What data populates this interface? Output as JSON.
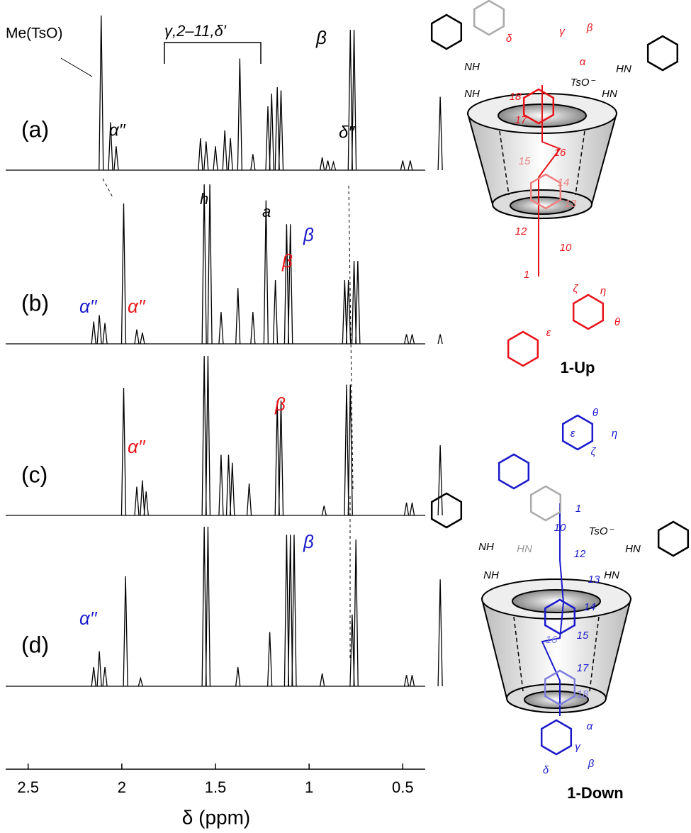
{
  "chart_data": {
    "type": "spectrum",
    "x_label": "δ (ppm)",
    "xlim": [
      2.62,
      0.38
    ],
    "xticks": [
      2.5,
      2.0,
      1.5,
      1.0,
      0.5
    ],
    "color": "#000000",
    "series": [
      {
        "name": "(a)",
        "x": [
          2.11,
          2.06,
          2.03,
          1.58,
          1.55,
          1.5,
          1.45,
          1.42,
          1.37,
          1.3,
          1.22,
          1.2,
          1.17,
          1.15,
          0.93,
          0.9,
          0.87,
          0.78,
          0.76,
          0.5,
          0.46,
          0.3
        ],
        "values": [
          97,
          30,
          15,
          20,
          18,
          15,
          25,
          20,
          70,
          10,
          40,
          48,
          52,
          50,
          8,
          6,
          5,
          88,
          88,
          6,
          6,
          46
        ]
      },
      {
        "name": "(b)",
        "x": [
          2.15,
          2.12,
          2.09,
          1.99,
          1.92,
          1.89,
          1.56,
          1.53,
          1.47,
          1.38,
          1.3,
          1.23,
          1.18,
          1.12,
          1.1,
          0.81,
          0.79,
          0.76,
          0.74,
          0.48,
          0.45,
          0.3
        ],
        "values": [
          14,
          18,
          13,
          88,
          9,
          7,
          100,
          100,
          20,
          35,
          20,
          90,
          40,
          75,
          75,
          40,
          40,
          52,
          52,
          6,
          6,
          6
        ]
      },
      {
        "name": "(c)",
        "x": [
          1.99,
          1.92,
          1.89,
          1.87,
          1.56,
          1.54,
          1.47,
          1.43,
          1.41,
          1.32,
          1.17,
          1.15,
          0.92,
          0.8,
          0.78,
          0.48,
          0.45,
          0.3
        ],
        "values": [
          80,
          18,
          22,
          15,
          100,
          100,
          38,
          38,
          33,
          20,
          72,
          72,
          6,
          82,
          82,
          8,
          8,
          44
        ]
      },
      {
        "name": "(d)",
        "x": [
          2.15,
          2.12,
          2.09,
          1.98,
          1.9,
          1.56,
          1.54,
          1.38,
          1.21,
          1.12,
          1.1,
          1.08,
          0.93,
          0.77,
          0.75,
          0.48,
          0.45,
          0.3
        ],
        "values": [
          12,
          22,
          12,
          69,
          5,
          100,
          100,
          12,
          34,
          95,
          95,
          95,
          8,
          45,
          92,
          7,
          7,
          67
        ]
      }
    ],
    "annotations": [
      {
        "text": "Me(TsO)",
        "color": "#000000"
      },
      {
        "text": "γ,2–11,δ′",
        "color": "#000000"
      },
      {
        "text": "β",
        "color": "#000000"
      },
      {
        "text": "α′′",
        "color": "#000000"
      },
      {
        "text": "δ′′",
        "color": "#000000"
      },
      {
        "text": "h",
        "color": "#000000"
      },
      {
        "text": "a",
        "color": "#000000"
      },
      {
        "text": "α′′",
        "color": "#1a1acc"
      },
      {
        "text": "α′′",
        "color": "#e8141a"
      },
      {
        "text": "β",
        "color": "#e8141a"
      },
      {
        "text": "β",
        "color": "#1a1acc"
      },
      {
        "text": "α′′",
        "color": "#e8141a"
      },
      {
        "text": "β",
        "color": "#e8141a"
      },
      {
        "text": "α′′",
        "color": "#1a1acc"
      },
      {
        "text": "β",
        "color": "#1a1acc"
      }
    ],
    "structures": [
      {
        "name": "1-Up",
        "labels": [
          {
            "text": "δ",
            "color": "#e8141a"
          },
          {
            "text": "γ",
            "color": "#e8141a"
          },
          {
            "text": "β",
            "color": "#e8141a"
          },
          {
            "text": "α",
            "color": "#e8141a"
          },
          {
            "text": "NH",
            "color": "#000000"
          },
          {
            "text": "NH",
            "color": "#000000"
          },
          {
            "text": "HN",
            "color": "#000000"
          },
          {
            "text": "HN",
            "color": "#000000"
          },
          {
            "text": "TsO⁻",
            "color": "#000000"
          },
          {
            "text": "18",
            "color": "#e8141a"
          },
          {
            "text": "17",
            "color": "#e8141a"
          },
          {
            "text": "15",
            "color": "#f08080"
          },
          {
            "text": "16",
            "color": "#e8141a"
          },
          {
            "text": "14",
            "color": "#f08080"
          },
          {
            "text": "13",
            "color": "#f08080"
          },
          {
            "text": "12",
            "color": "#e8141a"
          },
          {
            "text": "10",
            "color": "#e8141a"
          },
          {
            "text": "1",
            "color": "#e8141a"
          },
          {
            "text": "ζ",
            "color": "#e8141a"
          },
          {
            "text": "η",
            "color": "#e8141a"
          },
          {
            "text": "θ",
            "color": "#e8141a"
          },
          {
            "text": "ε",
            "color": "#e8141a"
          }
        ]
      },
      {
        "name": "1-Down",
        "labels": [
          {
            "text": "θ",
            "color": "#1a1acc"
          },
          {
            "text": "η",
            "color": "#1a1acc"
          },
          {
            "text": "ζ",
            "color": "#1a1acc"
          },
          {
            "text": "ε",
            "color": "#1a1acc"
          },
          {
            "text": "1",
            "color": "#1a1acc"
          },
          {
            "text": "10",
            "color": "#1a1acc"
          },
          {
            "text": "TsO⁻",
            "color": "#000000"
          },
          {
            "text": "12",
            "color": "#1a1acc"
          },
          {
            "text": "13",
            "color": "#1a1acc"
          },
          {
            "text": "14",
            "color": "#1a1acc"
          },
          {
            "text": "15",
            "color": "#1a1acc"
          },
          {
            "text": "16",
            "color": "#8080dd"
          },
          {
            "text": "17",
            "color": "#1a1acc"
          },
          {
            "text": "18",
            "color": "#8080dd"
          },
          {
            "text": "α",
            "color": "#1a1acc"
          },
          {
            "text": "γ",
            "color": "#1a1acc"
          },
          {
            "text": "β",
            "color": "#1a1acc"
          },
          {
            "text": "δ",
            "color": "#1a1acc"
          },
          {
            "text": "NH",
            "color": "#000000"
          },
          {
            "text": "HN",
            "color": "#999999"
          },
          {
            "text": "HN",
            "color": "#000000"
          },
          {
            "text": "NH",
            "color": "#000000"
          },
          {
            "text": "HN",
            "color": "#000000"
          }
        ]
      }
    ]
  }
}
